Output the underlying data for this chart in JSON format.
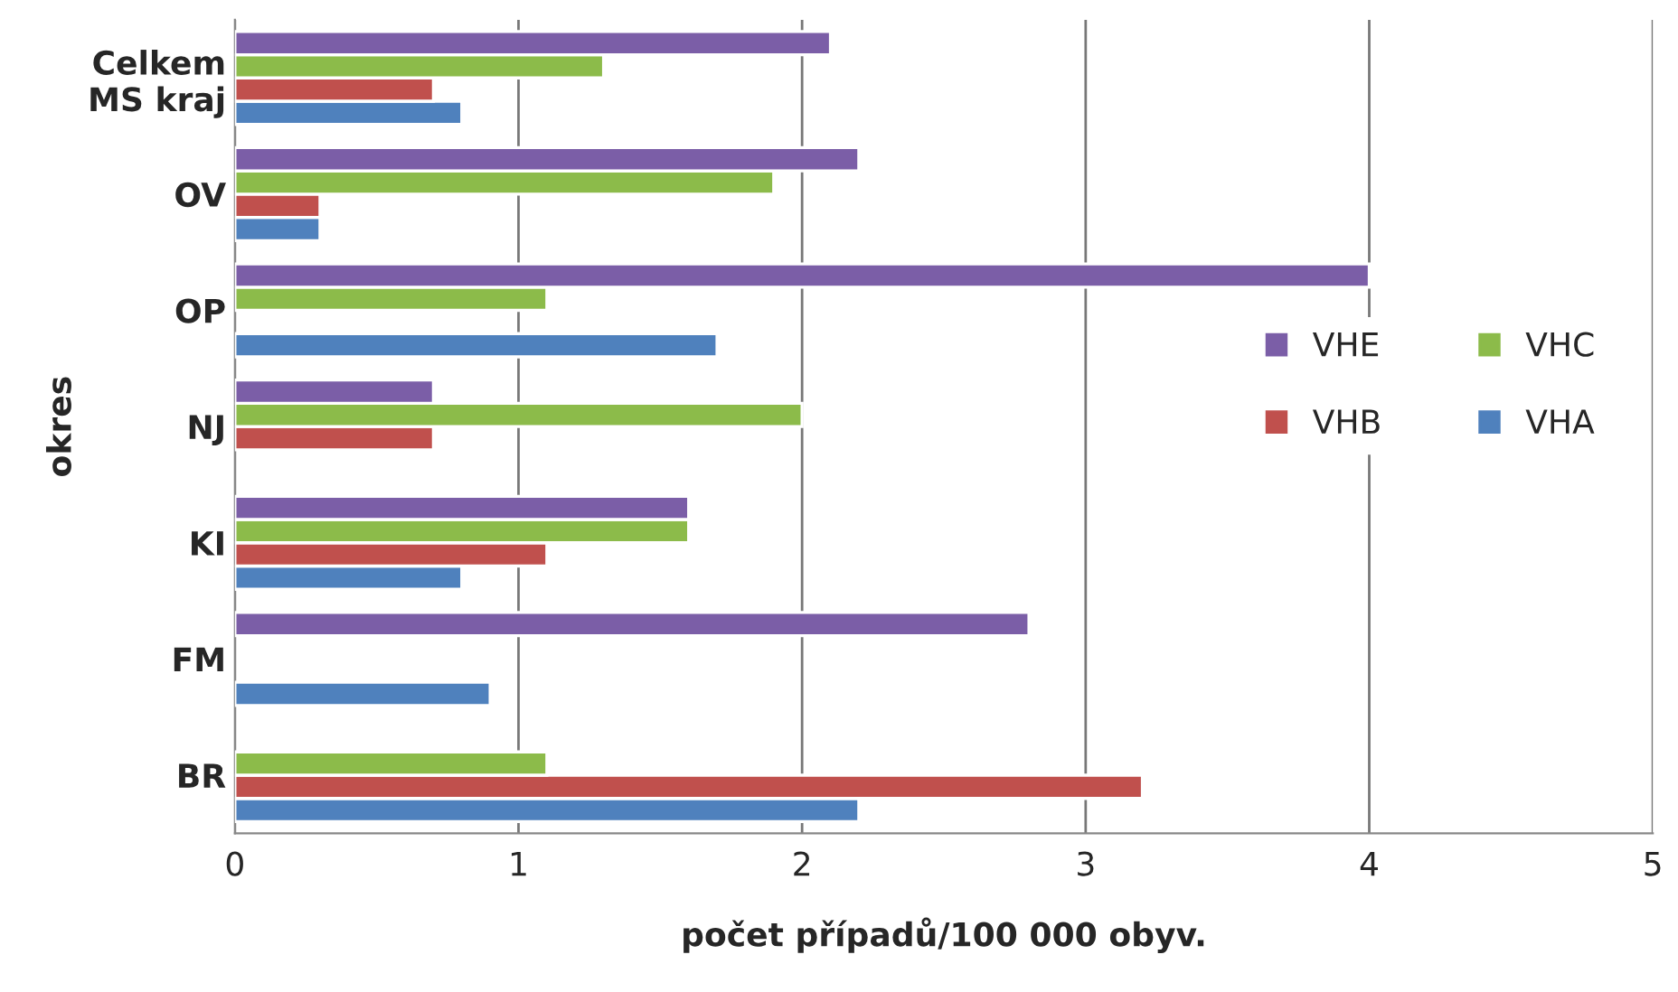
{
  "chart_data": {
    "type": "bar",
    "orientation": "horizontal",
    "categories": [
      "Celkem\nMS kraj",
      "OV",
      "OP",
      "NJ",
      "KI",
      "FM",
      "BR"
    ],
    "series": [
      {
        "name": "VHA",
        "color": "#4f81bd",
        "values": [
          0.8,
          0.3,
          1.7,
          null,
          0.8,
          0.9,
          2.2
        ]
      },
      {
        "name": "VHB",
        "color": "#c0504d",
        "values": [
          0.7,
          0.3,
          null,
          0.7,
          1.1,
          null,
          3.2
        ]
      },
      {
        "name": "VHC",
        "color": "#8cbb4a",
        "values": [
          1.3,
          1.9,
          1.1,
          2.0,
          1.6,
          null,
          1.1
        ]
      },
      {
        "name": "VHE",
        "color": "#7b5ea7",
        "values": [
          2.1,
          2.2,
          4.0,
          0.7,
          1.6,
          2.8,
          null
        ]
      }
    ],
    "xlim": [
      0,
      5
    ],
    "xticks": [
      0,
      1,
      2,
      3,
      4,
      5
    ],
    "xlabel": "počet případů/100 000 obyv.",
    "ylabel": "okres",
    "grid": "x",
    "legend": "right"
  }
}
